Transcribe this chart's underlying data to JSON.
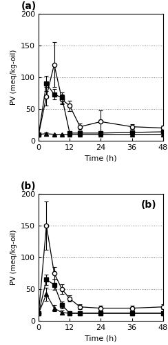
{
  "panel_a": {
    "series": {
      "circle": {
        "x": [
          0,
          3,
          6,
          9,
          12,
          16,
          24,
          36,
          48
        ],
        "y": [
          10,
          70,
          120,
          65,
          55,
          22,
          30,
          22,
          20
        ],
        "yerr": [
          2,
          15,
          35,
          8,
          8,
          5,
          18,
          4,
          4
        ],
        "marker": "o",
        "fillstyle": "none"
      },
      "square": {
        "x": [
          0,
          3,
          6,
          9,
          12,
          16,
          24,
          36,
          48
        ],
        "y": [
          10,
          90,
          73,
          68,
          12,
          12,
          12,
          13,
          14
        ],
        "yerr": [
          2,
          12,
          8,
          8,
          2,
          2,
          2,
          2,
          2
        ],
        "marker": "s",
        "fillstyle": "full"
      },
      "triangle": {
        "x": [
          0,
          3,
          6,
          9,
          12,
          16,
          24,
          36,
          48
        ],
        "y": [
          10,
          11,
          10,
          10,
          10,
          10,
          10,
          10,
          10
        ],
        "yerr": [
          1,
          2,
          1,
          1,
          1,
          1,
          1,
          1,
          1
        ],
        "marker": "^",
        "fillstyle": "full"
      }
    }
  },
  "panel_b": {
    "series": {
      "circle": {
        "x": [
          0,
          3,
          6,
          9,
          12,
          16,
          24,
          36,
          48
        ],
        "y": [
          12,
          150,
          75,
          50,
          35,
          22,
          20,
          20,
          22
        ],
        "yerr": [
          2,
          38,
          10,
          8,
          5,
          4,
          4,
          4,
          4
        ],
        "marker": "o",
        "fillstyle": "none"
      },
      "square": {
        "x": [
          0,
          3,
          6,
          9,
          12,
          16,
          24,
          36,
          48
        ],
        "y": [
          12,
          65,
          57,
          25,
          12,
          12,
          12,
          12,
          12
        ],
        "yerr": [
          2,
          8,
          8,
          5,
          2,
          2,
          2,
          2,
          2
        ],
        "marker": "s",
        "fillstyle": "full"
      },
      "triangle": {
        "x": [
          0,
          3,
          6,
          9,
          12,
          16,
          24,
          36,
          48
        ],
        "y": [
          12,
          42,
          20,
          13,
          12,
          12,
          12,
          12,
          12
        ],
        "yerr": [
          2,
          10,
          5,
          3,
          2,
          2,
          2,
          2,
          2
        ],
        "marker": "^",
        "fillstyle": "full"
      }
    }
  },
  "ylim": [
    0,
    200
  ],
  "xlim": [
    0,
    48
  ],
  "xticks": [
    0,
    12,
    24,
    36,
    48
  ],
  "yticks": [
    0,
    50,
    100,
    150,
    200
  ],
  "grid_yticks": [
    50,
    100,
    150
  ],
  "ylabel": "PV (meq/kg-oil)",
  "xlabel": "Time (h)"
}
